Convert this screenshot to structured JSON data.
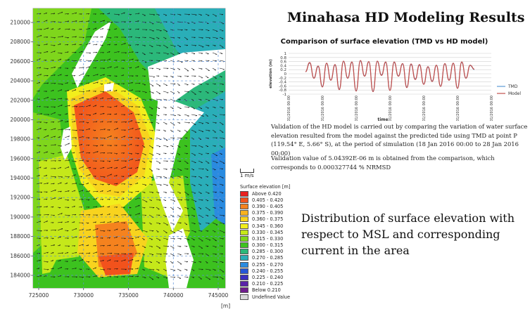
{
  "title": "Minahasa HD Modeling Results",
  "map": {
    "y_ticks": [
      "210000",
      "208000",
      "206000",
      "204000",
      "202000",
      "200000",
      "198000",
      "196000",
      "194000",
      "192000",
      "190000",
      "188000",
      "186000",
      "184000"
    ],
    "x_ticks": [
      "725000",
      "730000",
      "735000",
      "740000",
      "745000"
    ],
    "x_unit": "[m]",
    "scale_label": "1 m/s",
    "legend_title": "Surface elevation [m]",
    "legend": [
      {
        "label": "Above  0.420",
        "color": "#e8201f"
      },
      {
        "label": "0.405 - 0.420",
        "color": "#f2521c"
      },
      {
        "label": "0.390 - 0.405",
        "color": "#f5821e"
      },
      {
        "label": "0.375 - 0.390",
        "color": "#f8b21e"
      },
      {
        "label": "0.360 - 0.375",
        "color": "#f8d31e"
      },
      {
        "label": "0.345 - 0.360",
        "color": "#f2ee1c"
      },
      {
        "label": "0.330 - 0.345",
        "color": "#c5e81a"
      },
      {
        "label": "0.315 - 0.330",
        "color": "#7fd61c"
      },
      {
        "label": "0.300 - 0.315",
        "color": "#3cc21f"
      },
      {
        "label": "0.285 - 0.300",
        "color": "#2bb87a"
      },
      {
        "label": "0.270 - 0.285",
        "color": "#2aaeb8"
      },
      {
        "label": "0.255 - 0.270",
        "color": "#2a8be0"
      },
      {
        "label": "0.240 - 0.255",
        "color": "#2457d8"
      },
      {
        "label": "0.225 - 0.240",
        "color": "#3a2fc2"
      },
      {
        "label": "0.210 - 0.225",
        "color": "#5a22a8"
      },
      {
        "label": "Below  0.210",
        "color": "#6e1b8c"
      },
      {
        "label": "Undefined Value",
        "color": "#d8d8d8"
      }
    ]
  },
  "chart_data": {
    "type": "line",
    "title": "Comparison of surface elevation (TMD vs HD model)",
    "xlabel": "time",
    "ylabel": "elevation (m)",
    "ylim": [
      -1,
      1
    ],
    "y_ticks": [
      "1",
      "0.8",
      "0.6",
      "0.4",
      "0.2",
      "0",
      "-0.2",
      "-0.4",
      "-0.6",
      "-0.8",
      "-1"
    ],
    "x_ticks": [
      "17/01/2016 00:00",
      "19/01/2016 00:00",
      "21/01/2016 00:00",
      "23/01/2016 00:00",
      "25/01/2016 00:00",
      "27/01/2016 00:00",
      "29/01/2016 00:00"
    ],
    "x_day_range": [
      17,
      29
    ],
    "series": [
      {
        "name": "TMD",
        "color": "#5b9bd5",
        "x": [
          18.0,
          18.25,
          18.5,
          18.75,
          19.0,
          19.25,
          19.5,
          19.75,
          20.0,
          20.25,
          20.5,
          20.75,
          21.0,
          21.25,
          21.5,
          21.75,
          22.0,
          22.25,
          22.5,
          22.75,
          23.0,
          23.25,
          23.5,
          23.75,
          24.0,
          24.25,
          24.5,
          24.75,
          25.0,
          25.25,
          25.5,
          25.75,
          26.0,
          26.25,
          26.5,
          26.75,
          27.0,
          27.25,
          27.5,
          27.75,
          28.0
        ],
        "y": [
          0.1,
          0.52,
          -0.2,
          0.35,
          -0.62,
          0.5,
          -0.3,
          0.42,
          -0.75,
          0.6,
          -0.2,
          0.55,
          -0.82,
          0.62,
          -0.1,
          0.58,
          -0.85,
          0.6,
          -0.05,
          0.55,
          -0.8,
          0.55,
          -0.1,
          0.48,
          -0.65,
          0.45,
          -0.25,
          0.42,
          -0.5,
          0.32,
          -0.35,
          0.4,
          -0.6,
          0.48,
          -0.3,
          0.5,
          -0.7,
          0.55,
          -0.2,
          0.4,
          0.2
        ]
      },
      {
        "name": "Model",
        "color": "#c0504d",
        "x": [
          18.0,
          18.25,
          18.5,
          18.75,
          19.0,
          19.25,
          19.5,
          19.75,
          20.0,
          20.25,
          20.5,
          20.75,
          21.0,
          21.25,
          21.5,
          21.75,
          22.0,
          22.25,
          22.5,
          22.75,
          23.0,
          23.25,
          23.5,
          23.75,
          24.0,
          24.25,
          24.5,
          24.75,
          25.0,
          25.25,
          25.5,
          25.75,
          26.0,
          26.25,
          26.5,
          26.75,
          27.0,
          27.25,
          27.5,
          27.75,
          28.0
        ],
        "y": [
          0.1,
          0.55,
          -0.22,
          0.38,
          -0.65,
          0.52,
          -0.32,
          0.45,
          -0.78,
          0.62,
          -0.22,
          0.58,
          -0.85,
          0.65,
          -0.12,
          0.6,
          -0.88,
          0.62,
          -0.08,
          0.58,
          -0.82,
          0.58,
          -0.12,
          0.5,
          -0.68,
          0.48,
          -0.28,
          0.45,
          -0.52,
          0.35,
          -0.38,
          0.42,
          -0.62,
          0.5,
          -0.32,
          0.52,
          -0.72,
          0.58,
          -0.22,
          0.42,
          0.22
        ]
      }
    ]
  },
  "paragraph1": "Validation of the HD model is carried out by comparing the variation of water surface elevation resulted from the model against the predicted tide using TMD at point P (119.54° E, 5.66° S), at the period of simulation (18 Jan 2016 00:00 to 28 Jan 2016 00:00)",
  "paragraph2": "Validation value of 5.04392E-06 m is obtained from the comparison, which corresponds to 0.000327744 % NRMSD",
  "distribution_text": "Distribution of surface elevation with respect to MSL and corresponding current in the area"
}
